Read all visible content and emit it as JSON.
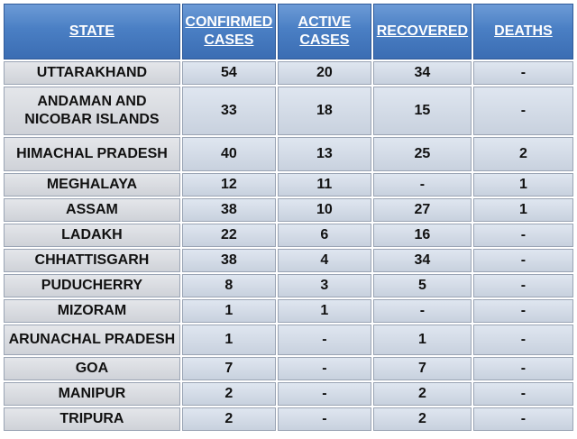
{
  "headers": {
    "state": "STATE",
    "confirmed_line1": "CONFIRMED",
    "confirmed_line2": "CASES",
    "active_line1": "ACTIVE",
    "active_line2": "CASES",
    "recovered": "RECOVERED",
    "deaths": "DEATHS"
  },
  "rows": [
    {
      "state": "UTTARAKHAND",
      "state_line2": "",
      "confirmed": "54",
      "active": "20",
      "recovered": "34",
      "deaths": "-"
    },
    {
      "state": "ANDAMAN AND",
      "state_line2": "NICOBAR ISLANDS",
      "confirmed": "33",
      "active": "18",
      "recovered": "15",
      "deaths": "-"
    },
    {
      "state": "HIMACHAL PRADESH",
      "state_line2": "",
      "confirmed": "40",
      "active": "13",
      "recovered": "25",
      "deaths": "2"
    },
    {
      "state": "MEGHALAYA",
      "state_line2": "",
      "confirmed": "12",
      "active": "11",
      "recovered": "-",
      "deaths": "1"
    },
    {
      "state": "ASSAM",
      "state_line2": "",
      "confirmed": "38",
      "active": "10",
      "recovered": "27",
      "deaths": "1"
    },
    {
      "state": "LADAKH",
      "state_line2": "",
      "confirmed": "22",
      "active": "6",
      "recovered": "16",
      "deaths": "-"
    },
    {
      "state": "CHHATTISGARH",
      "state_line2": "",
      "confirmed": "38",
      "active": "4",
      "recovered": "34",
      "deaths": "-"
    },
    {
      "state": "PUDUCHERRY",
      "state_line2": "",
      "confirmed": "8",
      "active": "3",
      "recovered": "5",
      "deaths": "-"
    },
    {
      "state": "MIZORAM",
      "state_line2": "",
      "confirmed": "1",
      "active": "1",
      "recovered": "-",
      "deaths": "-"
    },
    {
      "state": "ARUNACHAL PRADESH",
      "state_line2": "",
      "confirmed": "1",
      "active": "-",
      "recovered": "1",
      "deaths": "-"
    },
    {
      "state": "GOA",
      "state_line2": "",
      "confirmed": "7",
      "active": "-",
      "recovered": "7",
      "deaths": "-"
    },
    {
      "state": "MANIPUR",
      "state_line2": "",
      "confirmed": "2",
      "active": "-",
      "recovered": "2",
      "deaths": "-"
    },
    {
      "state": "TRIPURA",
      "state_line2": "",
      "confirmed": "2",
      "active": "-",
      "recovered": "2",
      "deaths": "-"
    }
  ]
}
